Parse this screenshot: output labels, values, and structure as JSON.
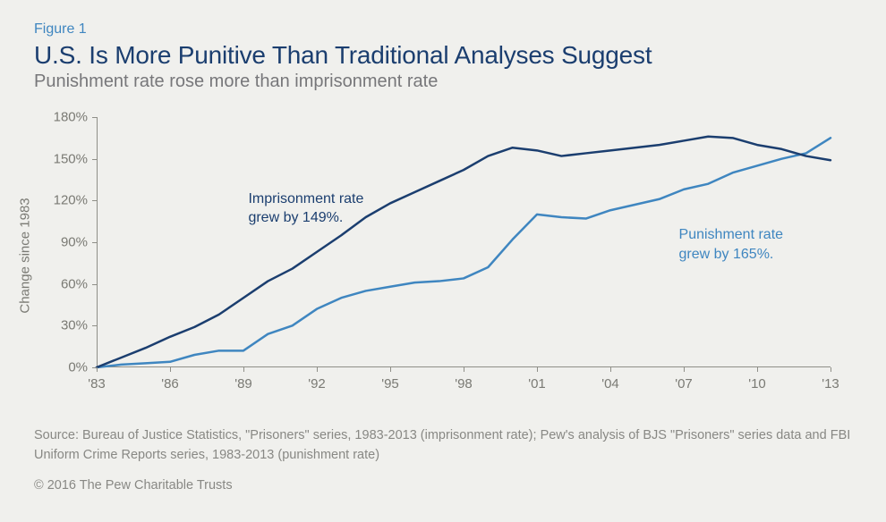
{
  "figure_label": "Figure 1",
  "title": "U.S. Is More Punitive Than Traditional Analyses Suggest",
  "subtitle": "Punishment rate rose more than imprisonment rate",
  "colors": {
    "figure_label": "#3f86c0",
    "title": "#1b3e6f",
    "subtitle": "#77777a",
    "axis_text": "#7a7a74",
    "axis_line": "#8f8f88",
    "source_text": "#888884",
    "series_imprisonment": "#1b3e6f",
    "series_punishment": "#3f86c0",
    "annotation_imprisonment": "#1b3e6f",
    "annotation_punishment": "#3f86c0",
    "background": "#f0f0ed"
  },
  "y_axis": {
    "title": "Change since 1983",
    "min": 0,
    "max": 180,
    "tick_step": 30,
    "ticks": [
      "0%",
      "30%",
      "60%",
      "90%",
      "120%",
      "150%",
      "180%"
    ]
  },
  "x_axis": {
    "min": 1983,
    "max": 2013,
    "tick_step": 3,
    "ticks": [
      "'83",
      "'86",
      "'89",
      "'92",
      "'95",
      "'98",
      "'01",
      "'04",
      "'07",
      "'10",
      "'13"
    ]
  },
  "series": {
    "imprisonment": {
      "label": "Imprisonment rate",
      "line_width": 2.5,
      "years": [
        1983,
        1984,
        1985,
        1986,
        1987,
        1988,
        1989,
        1990,
        1991,
        1992,
        1993,
        1994,
        1995,
        1996,
        1997,
        1998,
        1999,
        2000,
        2001,
        2002,
        2003,
        2004,
        2005,
        2006,
        2007,
        2008,
        2009,
        2010,
        2011,
        2012,
        2013
      ],
      "values": [
        0,
        7,
        14,
        22,
        29,
        38,
        50,
        62,
        71,
        83,
        95,
        108,
        118,
        126,
        134,
        142,
        152,
        158,
        156,
        152,
        154,
        156,
        158,
        160,
        163,
        166,
        165,
        160,
        157,
        152,
        149
      ]
    },
    "punishment": {
      "label": "Punishment rate",
      "line_width": 2.5,
      "years": [
        1983,
        1984,
        1985,
        1986,
        1987,
        1988,
        1989,
        1990,
        1991,
        1992,
        1993,
        1994,
        1995,
        1996,
        1997,
        1998,
        1999,
        2000,
        2001,
        2002,
        2003,
        2004,
        2005,
        2006,
        2007,
        2008,
        2009,
        2010,
        2011,
        2012,
        2013
      ],
      "values": [
        0,
        2,
        3,
        4,
        9,
        12,
        12,
        24,
        30,
        42,
        50,
        55,
        58,
        61,
        62,
        64,
        72,
        92,
        110,
        108,
        107,
        113,
        117,
        121,
        128,
        132,
        140,
        145,
        150,
        154,
        165
      ]
    }
  },
  "annotations": {
    "imprisonment": {
      "text": "Imprisonment rate\ngrew by 149%.",
      "x_year": 1989.2,
      "y_value": 128
    },
    "punishment": {
      "text": "Punishment rate\ngrew by 165%.",
      "x_year": 2006.8,
      "y_value": 102
    }
  },
  "source": "Source: Bureau of Justice Statistics, \"Prisoners\" series, 1983-2013 (imprisonment rate); Pew's analysis of BJS \"Prisoners\" series data and FBI Uniform Crime Reports series, 1983-2013 (punishment rate)",
  "copyright": "© 2016 The Pew Charitable Trusts"
}
